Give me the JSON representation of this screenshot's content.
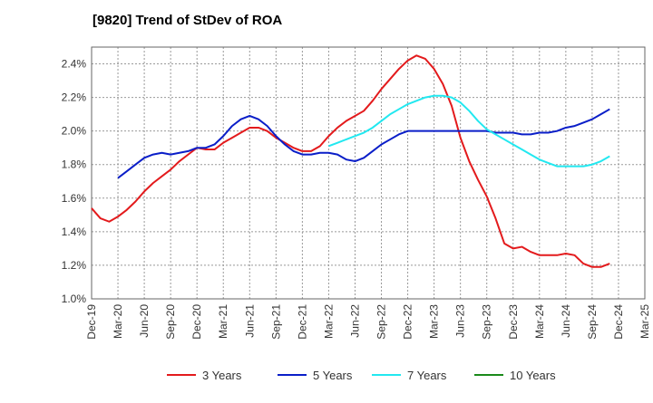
{
  "chart_data": {
    "type": "line",
    "title": "[9820]  Trend of StDev of ROA",
    "xlabel": "",
    "ylabel": "",
    "x_tick_labels": [
      "Dec-19",
      "Mar-20",
      "Jun-20",
      "Sep-20",
      "Dec-20",
      "Mar-21",
      "Jun-21",
      "Sep-21",
      "Dec-21",
      "Mar-22",
      "Jun-22",
      "Sep-22",
      "Dec-22",
      "Mar-23",
      "Jun-23",
      "Sep-23",
      "Dec-23",
      "Mar-24",
      "Jun-24",
      "Sep-24",
      "Dec-24",
      "Mar-25"
    ],
    "y_tick_labels": [
      "1.0%",
      "1.2%",
      "1.4%",
      "1.6%",
      "1.8%",
      "2.0%",
      "2.2%",
      "2.4%"
    ],
    "y_ticks": [
      1.0,
      1.2,
      1.4,
      1.6,
      1.8,
      2.0,
      2.2,
      2.4
    ],
    "ylim": [
      1.0,
      2.5
    ],
    "grid": true,
    "legend_position": "bottom",
    "series": [
      {
        "name": "3 Years",
        "color": "#e31a1c",
        "values": [
          1.54,
          1.48,
          1.46,
          1.49,
          1.53,
          1.58,
          1.64,
          1.69,
          1.73,
          1.77,
          1.82,
          1.86,
          1.9,
          1.89,
          1.89,
          1.93,
          1.96,
          1.99,
          2.02,
          2.02,
          2.0,
          1.96,
          1.93,
          1.9,
          1.88,
          1.88,
          1.91,
          1.97,
          2.02,
          2.06,
          2.09,
          2.12,
          2.18,
          2.25,
          2.31,
          2.37,
          2.42,
          2.45,
          2.43,
          2.37,
          2.28,
          2.15,
          1.96,
          1.82,
          1.71,
          1.61,
          1.48,
          1.33,
          1.3,
          1.31,
          1.28,
          1.26,
          1.26,
          1.26,
          1.27,
          1.26,
          1.21,
          1.19,
          1.19,
          1.21
        ]
      },
      {
        "name": "5 Years",
        "color": "#0a1ec8",
        "values": [
          null,
          null,
          null,
          1.72,
          1.76,
          1.8,
          1.84,
          1.86,
          1.87,
          1.86,
          1.87,
          1.88,
          1.9,
          1.9,
          1.92,
          1.97,
          2.03,
          2.07,
          2.09,
          2.07,
          2.03,
          1.97,
          1.92,
          1.88,
          1.86,
          1.86,
          1.87,
          1.87,
          1.86,
          1.83,
          1.82,
          1.84,
          1.88,
          1.92,
          1.95,
          1.98,
          2.0,
          2.0,
          2.0,
          2.0,
          2.0,
          2.0,
          2.0,
          2.0,
          2.0,
          2.0,
          1.99,
          1.99,
          1.99,
          1.98,
          1.98,
          1.99,
          1.99,
          2.0,
          2.02,
          2.03,
          2.05,
          2.07,
          2.1,
          2.13
        ]
      },
      {
        "name": "7 Years",
        "color": "#22e8f0",
        "values": [
          null,
          null,
          null,
          null,
          null,
          null,
          null,
          null,
          null,
          null,
          null,
          null,
          null,
          null,
          null,
          null,
          null,
          null,
          null,
          null,
          null,
          null,
          null,
          null,
          null,
          null,
          null,
          1.91,
          1.93,
          1.95,
          1.97,
          1.99,
          2.02,
          2.06,
          2.1,
          2.13,
          2.16,
          2.18,
          2.2,
          2.21,
          2.21,
          2.2,
          2.17,
          2.12,
          2.06,
          2.01,
          1.98,
          1.95,
          1.92,
          1.89,
          1.86,
          1.83,
          1.81,
          1.79,
          1.79,
          1.79,
          1.79,
          1.8,
          1.82,
          1.85
        ]
      },
      {
        "name": "10 Years",
        "color": "#1a8a1a",
        "values": []
      }
    ]
  }
}
